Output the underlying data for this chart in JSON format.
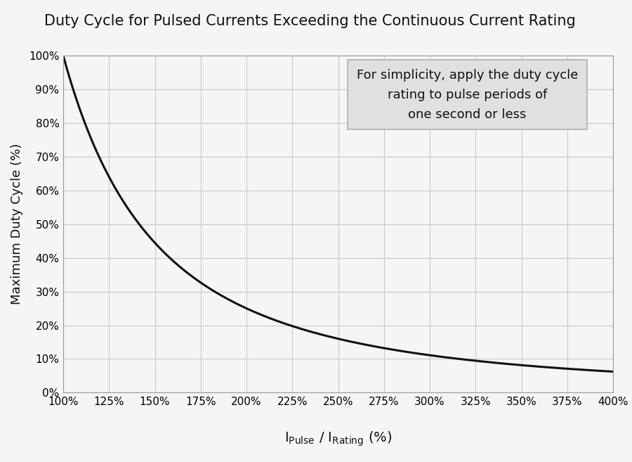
{
  "title": "Duty Cycle for Pulsed Currents Exceeding the Continuous Current Rating",
  "ylabel": "Maximum Duty Cycle (%)",
  "x_start": 100,
  "x_end": 400,
  "x_ticks": [
    100,
    125,
    150,
    175,
    200,
    225,
    250,
    275,
    300,
    325,
    350,
    375,
    400
  ],
  "y_ticks": [
    0,
    10,
    20,
    30,
    40,
    50,
    60,
    70,
    80,
    90,
    100
  ],
  "annotation_text": "For simplicity, apply the duty cycle\nrating to pulse periods of\none second or less",
  "background_color": "#f5f5f5",
  "plot_bg_color": "#f5f5f5",
  "grid_color": "#c8c8c8",
  "curve_color": "#111111",
  "curve_linewidth": 2.2,
  "title_fontsize": 15,
  "label_fontsize": 13,
  "tick_fontsize": 11,
  "annotation_fontsize": 13,
  "annotation_box_color": "#e0e0e0",
  "annotation_edge_color": "#b0b0b0"
}
